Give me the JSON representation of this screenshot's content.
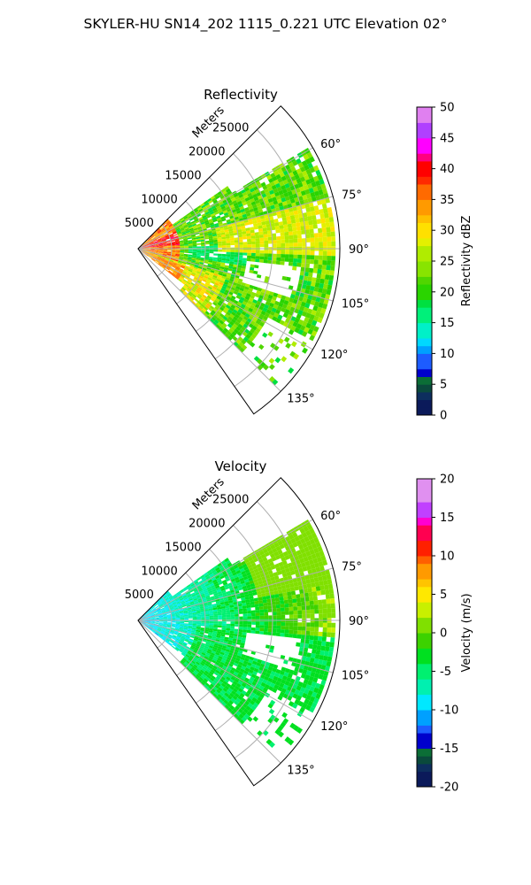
{
  "figure": {
    "title": "SKYLER-HU  SN14_202  1115_0.221 UTC Elevation 02°"
  },
  "chart_data": [
    {
      "type": "heatmap",
      "projection": "polar-sector",
      "title": "Reflectivity",
      "range_label": "Meters",
      "range_ticks": [
        "5000",
        "10000",
        "15000",
        "20000",
        "25000"
      ],
      "range_tick_values": [
        5000,
        10000,
        15000,
        20000,
        25000
      ],
      "range_max": 30000,
      "azimuth_range": [
        45,
        145
      ],
      "azimuth_ticks": [
        "60°",
        "75°",
        "90°",
        "105°",
        "120°",
        "135°"
      ],
      "azimuth_tick_values": [
        60,
        75,
        90,
        105,
        120,
        135
      ],
      "grid": true,
      "colorbar": {
        "label": "Reflectivity dBZ",
        "min": 0,
        "max": 50,
        "ticks": [
          "0",
          "5",
          "10",
          "15",
          "20",
          "25",
          "30",
          "35",
          "40",
          "45",
          "50"
        ],
        "tick_values": [
          0,
          5,
          10,
          15,
          20,
          25,
          30,
          35,
          40,
          45,
          50
        ],
        "position": "right"
      }
    },
    {
      "type": "heatmap",
      "projection": "polar-sector",
      "title": "Velocity",
      "range_label": "Meters",
      "range_ticks": [
        "5000",
        "10000",
        "15000",
        "20000",
        "25000"
      ],
      "range_tick_values": [
        5000,
        10000,
        15000,
        20000,
        25000
      ],
      "range_max": 30000,
      "azimuth_range": [
        45,
        145
      ],
      "azimuth_ticks": [
        "60°",
        "75°",
        "90°",
        "105°",
        "120°",
        "135°"
      ],
      "azimuth_tick_values": [
        60,
        75,
        90,
        105,
        120,
        135
      ],
      "grid": true,
      "colorbar": {
        "label": "Velocity (m/s)",
        "min": -20,
        "max": 20,
        "ticks": [
          "-20",
          "-15",
          "-10",
          "-5",
          "0",
          "5",
          "10",
          "15",
          "20"
        ],
        "tick_values": [
          -20,
          -15,
          -10,
          -5,
          0,
          5,
          10,
          15,
          20
        ],
        "position": "right"
      }
    }
  ]
}
